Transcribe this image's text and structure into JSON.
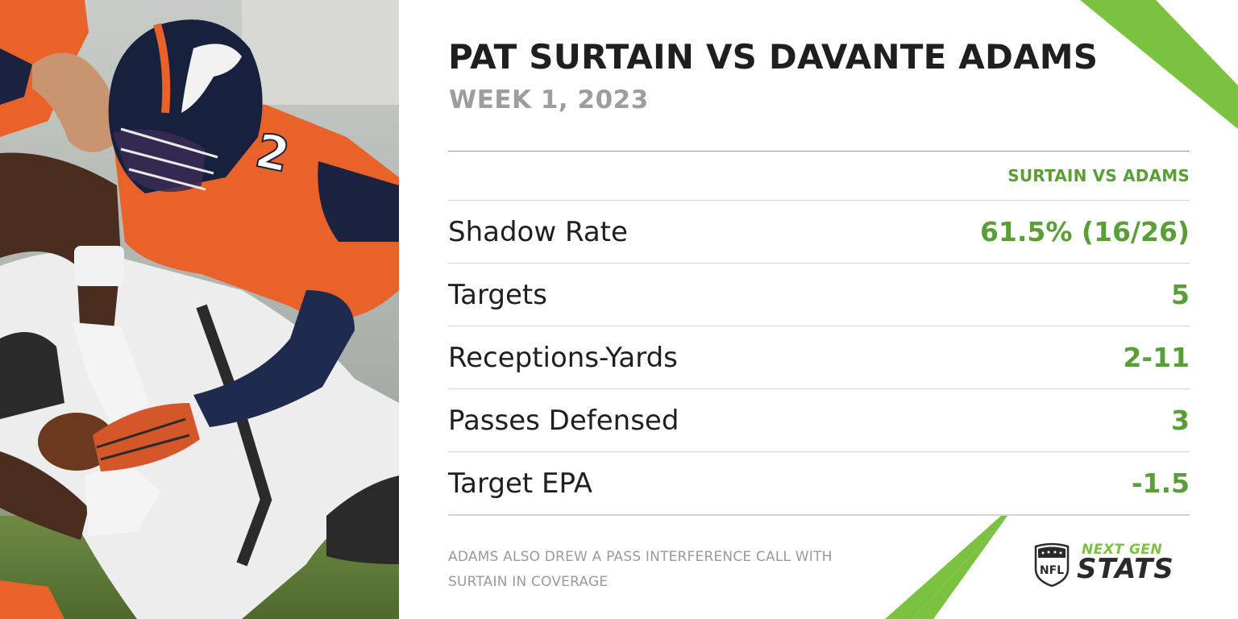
{
  "header": {
    "title": "PAT SURTAIN VS DAVANTE ADAMS",
    "subtitle": "WEEK 1, 2023"
  },
  "table": {
    "column_header": "SURTAIN VS ADAMS",
    "rows": [
      {
        "label": "Shadow Rate",
        "value": "61.5% (16/26)"
      },
      {
        "label": "Targets",
        "value": "5"
      },
      {
        "label": "Receptions-Yards",
        "value": "2-11"
      },
      {
        "label": "Passes Defensed",
        "value": "3"
      },
      {
        "label": "Target EPA",
        "value": "-1.5"
      }
    ]
  },
  "footnote": {
    "line1": "ADAMS ALSO DREW A PASS INTERFERENCE CALL WITH",
    "line2": "SURTAIN IN COVERAGE"
  },
  "branding": {
    "shield_text": "NFL",
    "top": "NEXT GEN",
    "bottom": "STATS"
  },
  "colors": {
    "accent_green": "#5a9e37",
    "stripe_green": "#7cc241",
    "title": "#1f1f1f",
    "muted": "#9d9d9d",
    "broncos_orange": "#e8622a",
    "broncos_navy": "#1b2340"
  },
  "photo": {
    "jersey_number": "2"
  }
}
